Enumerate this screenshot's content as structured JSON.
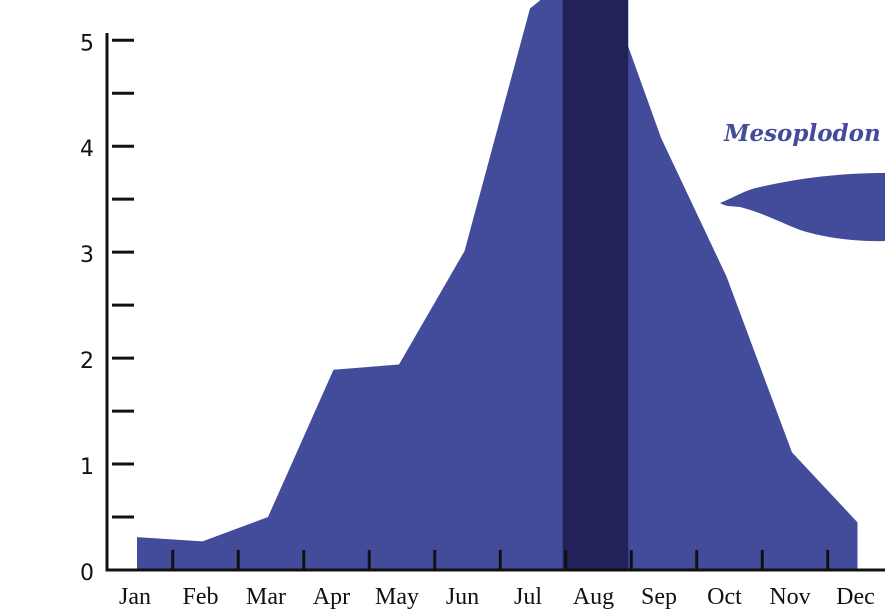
{
  "chart_data": {
    "type": "area",
    "categories": [
      "Jan",
      "Feb",
      "Mar",
      "Apr",
      "May",
      "Jun",
      "Jul",
      "Aug",
      "Sep",
      "Oct",
      "Nov",
      "Dec"
    ],
    "values": [
      0.31,
      0.27,
      0.5,
      1.89,
      1.94,
      3.01,
      5.3,
      5.8,
      4.08,
      2.77,
      1.11,
      0.45
    ],
    "color": "#434c9a",
    "highlight_category": "Aug",
    "highlight_color": "#22215a",
    "annotation": "Mesoplodon",
    "ylim": [
      0,
      5.38
    ],
    "yticks": [
      0,
      1,
      2,
      3,
      4,
      5
    ],
    "minor_yticks": [
      0.5,
      1.5,
      2.5,
      3.5,
      4.5
    ]
  }
}
